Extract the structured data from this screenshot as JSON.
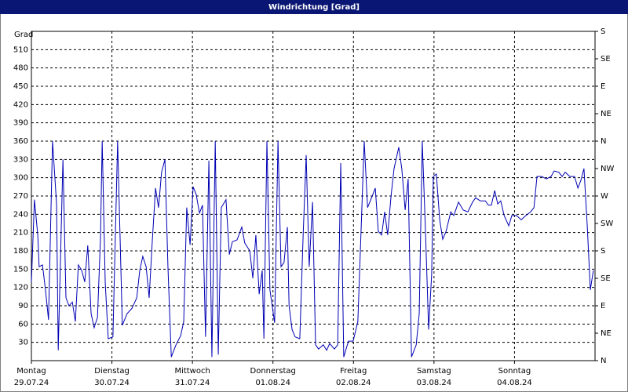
{
  "chart_data": {
    "type": "line",
    "title": "Windrichtung [Grad]",
    "ylabel": "Grad",
    "xlim": [
      0,
      168
    ],
    "xticks": [
      {
        "value": 0,
        "label": "Montag"
      },
      {
        "value": 24,
        "label": "Dienstag"
      },
      {
        "value": 48,
        "label": "Mittwoch"
      },
      {
        "value": 72,
        "label": "Donnerstag"
      },
      {
        "value": 96,
        "label": "Freitag"
      },
      {
        "value": 120,
        "label": "Samstag"
      },
      {
        "value": 144,
        "label": "Sonntag"
      }
    ],
    "x_dates": [
      "29.07.24",
      "30.07.24",
      "31.07.24",
      "01.08.24",
      "02.08.24",
      "03.08.24",
      "04.08.24"
    ],
    "ylim": [
      0,
      540
    ],
    "yticks": [
      30,
      60,
      90,
      120,
      150,
      180,
      210,
      240,
      270,
      300,
      330,
      360,
      390,
      420,
      450,
      480,
      510
    ],
    "y2lim": [
      0,
      540
    ],
    "y2ticks": [
      {
        "value": 0,
        "label": "N"
      },
      {
        "value": 45,
        "label": "NE"
      },
      {
        "value": 90,
        "label": "E"
      },
      {
        "value": 135,
        "label": "SE"
      },
      {
        "value": 180,
        "label": "S"
      },
      {
        "value": 225,
        "label": "SW"
      },
      {
        "value": 270,
        "label": "W"
      },
      {
        "value": 315,
        "label": "NW"
      },
      {
        "value": 360,
        "label": "N"
      },
      {
        "value": 405,
        "label": "NE"
      },
      {
        "value": 450,
        "label": "E"
      },
      {
        "value": 495,
        "label": "SE"
      },
      {
        "value": 540,
        "label": "S"
      }
    ],
    "grid": true,
    "series": [
      {
        "color": "#0000b4",
        "x": [
          0,
          0.9,
          1.9,
          2.3,
          3.3,
          4.2,
          5.1,
          6.3,
          7.5,
          8.0,
          9.4,
          10.3,
          11.2,
          12.2,
          13.1,
          14.0,
          15.0,
          15.9,
          16.8,
          17.8,
          18.7,
          19.7,
          20.6,
          21.1,
          22.0,
          22.9,
          24.3,
          25.7,
          27.1,
          28.5,
          30.0,
          31.4,
          32.3,
          33.2,
          34.2,
          35.1,
          36.0,
          37.0,
          37.9,
          38.8,
          39.8,
          40.7,
          41.7,
          43.1,
          44.5,
          45.4,
          46.3,
          47.3,
          48.2,
          49.1,
          50.1,
          51.0,
          51.9,
          52.9,
          53.8,
          54.8,
          55.7,
          56.6,
          58.0,
          59.0,
          59.9,
          61.3,
          62.7,
          63.6,
          65.1,
          66.0,
          66.9,
          67.9,
          68.8,
          69.3,
          70.2,
          71.1,
          72.5,
          73.5,
          74.4,
          75.3,
          76.3,
          76.8,
          77.7,
          78.6,
          80.0,
          81.0,
          81.9,
          82.8,
          83.8,
          84.7,
          85.6,
          87.0,
          88.0,
          88.9,
          90.3,
          91.3,
          92.2,
          93.1,
          94.5,
          95.9,
          97.3,
          98.3,
          99.2,
          100.2,
          101.6,
          102.5,
          103.4,
          104.4,
          105.3,
          106.2,
          107.2,
          108.1,
          109.5,
          110.4,
          111.4,
          112.3,
          113.3,
          114.7,
          115.6,
          116.5,
          117.5,
          118.4,
          119.3,
          119.8,
          120.7,
          121.7,
          122.6,
          123.6,
          125.0,
          125.9,
          127.3,
          128.7,
          130.1,
          131.5,
          132.4,
          133.8,
          135.3,
          136.2,
          137.1,
          138.1,
          139.0,
          139.9,
          140.9,
          142.3,
          143.2,
          144.6,
          146.0,
          147.4,
          148.8,
          149.8,
          150.7,
          152.1,
          153.5,
          154.9,
          155.8,
          157.2,
          158.2,
          159.1,
          160.5,
          161.9,
          162.9,
          163.8,
          164.7,
          165.7,
          166.6,
          167.5
        ],
        "values": [
          129,
          264,
          206,
          154,
          157,
          116,
          67,
          360,
          257,
          17,
          330,
          103,
          90,
          96,
          64,
          157,
          148,
          129,
          189,
          77,
          54,
          71,
          202,
          360,
          129,
          36,
          39,
          360,
          58,
          77,
          86,
          103,
          148,
          171,
          154,
          103,
          193,
          283,
          251,
          309,
          330,
          154,
          6,
          26,
          41,
          64,
          251,
          190,
          285,
          273,
          242,
          255,
          39,
          328,
          6,
          360,
          10,
          251,
          264,
          174,
          195,
          198,
          219,
          193,
          180,
          135,
          206,
          109,
          148,
          36,
          360,
          116,
          62,
          360,
          154,
          161,
          219,
          90,
          51,
          39,
          36,
          206,
          337,
          154,
          260,
          26,
          19,
          26,
          17,
          28,
          19,
          26,
          324,
          6,
          32,
          32,
          64,
          219,
          360,
          251,
          270,
          283,
          212,
          206,
          244,
          206,
          270,
          315,
          350,
          315,
          247,
          298,
          6,
          26,
          77,
          360,
          206,
          51,
          141,
          302,
          306,
          231,
          199,
          212,
          244,
          238,
          260,
          247,
          244,
          260,
          267,
          262,
          262,
          255,
          255,
          279,
          257,
          262,
          238,
          221,
          238,
          238,
          231,
          238,
          244,
          251,
          302,
          302,
          298,
          302,
          311,
          309,
          302,
          309,
          302,
          302,
          283,
          296,
          315,
          219,
          116,
          148
        ]
      }
    ]
  }
}
